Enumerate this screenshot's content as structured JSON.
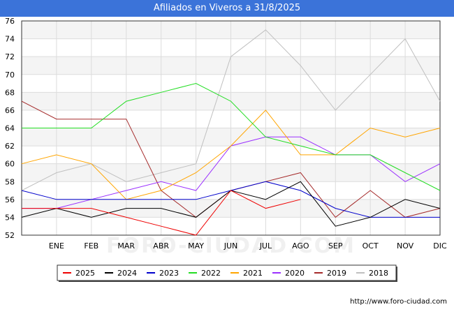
{
  "header": {
    "title": "Afiliados en Viveros a 31/8/2025"
  },
  "footer": {
    "url": "http://www.foro-ciudad.com"
  },
  "watermark": "FORO-CIUDAD.COM",
  "chart_data": {
    "type": "line",
    "title": "Afiliados en Viveros a 31/8/2025",
    "categories": [
      "",
      "ENE",
      "FEB",
      "MAR",
      "ABR",
      "MAY",
      "JUN",
      "JUL",
      "AGO",
      "SEP",
      "OCT",
      "NOV",
      "DIC"
    ],
    "ylim": [
      52,
      76
    ],
    "yticks": [
      52,
      54,
      56,
      58,
      60,
      62,
      64,
      66,
      68,
      70,
      72,
      74,
      76
    ],
    "grid": true,
    "legend_position": "bottom",
    "series": [
      {
        "name": "2018",
        "color": "#c0c0c0",
        "values": [
          57,
          59,
          60,
          58,
          59,
          60,
          72,
          75,
          71,
          66,
          70,
          74,
          67
        ]
      },
      {
        "name": "2019",
        "color": "#a52a2a",
        "values": [
          67,
          65,
          65,
          65,
          57,
          54,
          57,
          58,
          59,
          54,
          57,
          54,
          55
        ]
      },
      {
        "name": "2020",
        "color": "#9b30ff",
        "values": [
          55,
          55,
          56,
          57,
          58,
          57,
          62,
          63,
          63,
          61,
          61,
          58,
          60
        ]
      },
      {
        "name": "2021",
        "color": "#ffa500",
        "values": [
          60,
          61,
          60,
          56,
          57,
          59,
          62,
          66,
          61,
          61,
          64,
          63,
          64
        ]
      },
      {
        "name": "2022",
        "color": "#22dd22",
        "values": [
          64,
          64,
          64,
          67,
          68,
          69,
          67,
          63,
          62,
          61,
          61,
          59,
          57
        ]
      },
      {
        "name": "2023",
        "color": "#0000cc",
        "values": [
          57,
          56,
          56,
          56,
          56,
          56,
          57,
          58,
          57,
          55,
          54,
          54,
          54
        ]
      },
      {
        "name": "2024",
        "color": "#000000",
        "values": [
          54,
          55,
          54,
          55,
          55,
          54,
          57,
          56,
          58,
          53,
          54,
          56,
          55
        ]
      },
      {
        "name": "2025",
        "color": "#ee0000",
        "values": [
          55,
          55,
          55,
          54,
          53,
          52,
          57,
          55,
          56,
          null,
          null,
          null,
          null
        ]
      }
    ],
    "legend_order": [
      "2025",
      "2024",
      "2023",
      "2022",
      "2021",
      "2020",
      "2019",
      "2018"
    ]
  }
}
